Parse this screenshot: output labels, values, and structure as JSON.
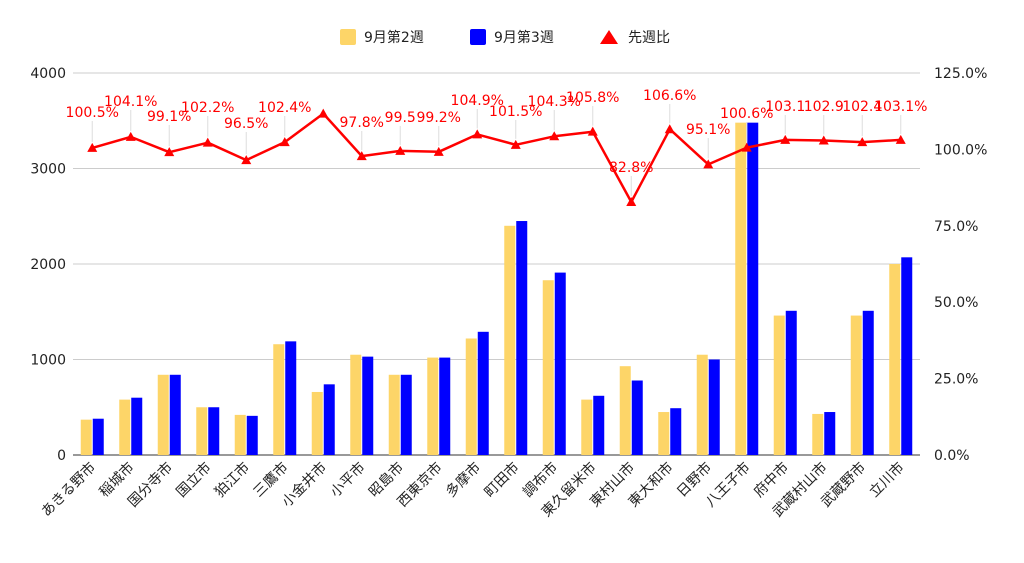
{
  "chart_data": {
    "type": "bar",
    "categories": [
      "あきる野市",
      "稲城市",
      "国分寺市",
      "国立市",
      "狛江市",
      "三鷹市",
      "小金井市",
      "小平市",
      "昭島市",
      "西東京市",
      "多摩市",
      "町田市",
      "調布市",
      "東久留米市",
      "東村山市",
      "東大和市",
      "日野市",
      "八王子市",
      "府中市",
      "武蔵村山市",
      "武蔵野市",
      "立川市"
    ],
    "series": [
      {
        "name": "9月第2週",
        "color": "#fdd568",
        "axis": "left",
        "kind": "bar",
        "values": [
          370,
          580,
          840,
          500,
          420,
          1160,
          660,
          1050,
          840,
          1020,
          1220,
          2400,
          1830,
          580,
          930,
          450,
          1050,
          3480,
          1460,
          430,
          1460,
          2000
        ]
      },
      {
        "name": "9月第3週",
        "color": "#0000ff",
        "axis": "left",
        "kind": "bar",
        "values": [
          380,
          600,
          840,
          500,
          410,
          1190,
          740,
          1030,
          840,
          1020,
          1290,
          2450,
          1910,
          620,
          780,
          490,
          1000,
          3480,
          1510,
          450,
          1510,
          2070
        ]
      },
      {
        "name": "先週比",
        "color": "#ff0000",
        "axis": "right",
        "kind": "line",
        "values": [
          100.5,
          104.1,
          99.1,
          102.2,
          96.5,
          102.4,
          111.7,
          97.8,
          99.5,
          99.2,
          104.9,
          101.5,
          104.3,
          105.8,
          82.8,
          106.6,
          95.1,
          100.6,
          103.1,
          102.9,
          102.4,
          103.1
        ],
        "labels": [
          "100.5%",
          "104.1%",
          "99.1%",
          "102.2%",
          "96.5%",
          "102.4%",
          "",
          "97.8%",
          "99.5",
          "99.2%",
          "104.9%",
          "101.5%",
          "104.3%",
          "105.8%",
          "82.8%",
          "106.6%",
          "95.1%",
          "100.6%",
          "103.1",
          "102.9",
          "102.4",
          "103.1%"
        ]
      }
    ],
    "left_axis": {
      "min": 0,
      "max": 4000,
      "ticks": [
        "0",
        "1000",
        "2000",
        "3000",
        "4000"
      ]
    },
    "right_axis": {
      "min": 0,
      "max": 125,
      "ticks": [
        "0.0%",
        "25.0%",
        "50.0%",
        "75.0%",
        "100.0%",
        "125.0%"
      ]
    },
    "grid": true,
    "legend_position": "top-center"
  }
}
